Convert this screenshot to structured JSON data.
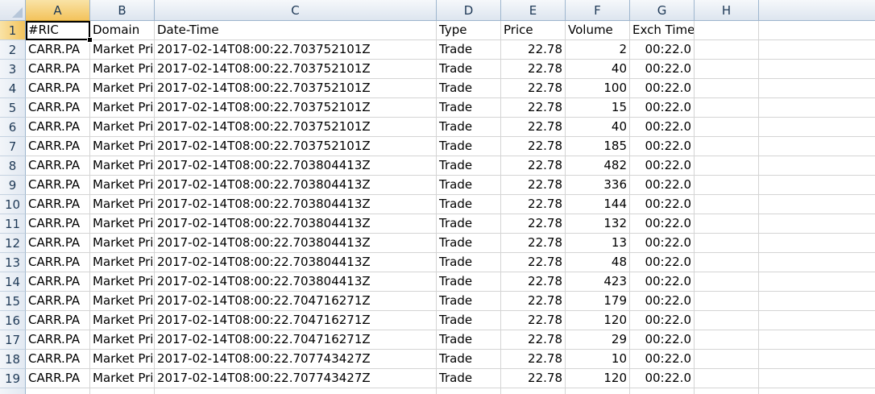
{
  "columns": [
    "A",
    "B",
    "C",
    "D",
    "E",
    "F",
    "G",
    "H"
  ],
  "active_column": "A",
  "active_row": "1",
  "header_row": [
    "#RIC",
    "Domain",
    "Date-Time",
    "Type",
    "Price",
    "Volume",
    "Exch Time"
  ],
  "rows": [
    {
      "n": "1"
    },
    {
      "n": "2",
      "ric": "CARR.PA",
      "domain": "Market Pri",
      "dt": "2017-02-14T08:00:22.703752101Z",
      "type": "Trade",
      "price": "22.78",
      "volume": "2",
      "exch": "00:22.0"
    },
    {
      "n": "3",
      "ric": "CARR.PA",
      "domain": "Market Pri",
      "dt": "2017-02-14T08:00:22.703752101Z",
      "type": "Trade",
      "price": "22.78",
      "volume": "40",
      "exch": "00:22.0"
    },
    {
      "n": "4",
      "ric": "CARR.PA",
      "domain": "Market Pri",
      "dt": "2017-02-14T08:00:22.703752101Z",
      "type": "Trade",
      "price": "22.78",
      "volume": "100",
      "exch": "00:22.0"
    },
    {
      "n": "5",
      "ric": "CARR.PA",
      "domain": "Market Pri",
      "dt": "2017-02-14T08:00:22.703752101Z",
      "type": "Trade",
      "price": "22.78",
      "volume": "15",
      "exch": "00:22.0"
    },
    {
      "n": "6",
      "ric": "CARR.PA",
      "domain": "Market Pri",
      "dt": "2017-02-14T08:00:22.703752101Z",
      "type": "Trade",
      "price": "22.78",
      "volume": "40",
      "exch": "00:22.0"
    },
    {
      "n": "7",
      "ric": "CARR.PA",
      "domain": "Market Pri",
      "dt": "2017-02-14T08:00:22.703752101Z",
      "type": "Trade",
      "price": "22.78",
      "volume": "185",
      "exch": "00:22.0"
    },
    {
      "n": "8",
      "ric": "CARR.PA",
      "domain": "Market Pri",
      "dt": "2017-02-14T08:00:22.703804413Z",
      "type": "Trade",
      "price": "22.78",
      "volume": "482",
      "exch": "00:22.0"
    },
    {
      "n": "9",
      "ric": "CARR.PA",
      "domain": "Market Pri",
      "dt": "2017-02-14T08:00:22.703804413Z",
      "type": "Trade",
      "price": "22.78",
      "volume": "336",
      "exch": "00:22.0"
    },
    {
      "n": "10",
      "ric": "CARR.PA",
      "domain": "Market Pri",
      "dt": "2017-02-14T08:00:22.703804413Z",
      "type": "Trade",
      "price": "22.78",
      "volume": "144",
      "exch": "00:22.0"
    },
    {
      "n": "11",
      "ric": "CARR.PA",
      "domain": "Market Pri",
      "dt": "2017-02-14T08:00:22.703804413Z",
      "type": "Trade",
      "price": "22.78",
      "volume": "132",
      "exch": "00:22.0"
    },
    {
      "n": "12",
      "ric": "CARR.PA",
      "domain": "Market Pri",
      "dt": "2017-02-14T08:00:22.703804413Z",
      "type": "Trade",
      "price": "22.78",
      "volume": "13",
      "exch": "00:22.0"
    },
    {
      "n": "13",
      "ric": "CARR.PA",
      "domain": "Market Pri",
      "dt": "2017-02-14T08:00:22.703804413Z",
      "type": "Trade",
      "price": "22.78",
      "volume": "48",
      "exch": "00:22.0"
    },
    {
      "n": "14",
      "ric": "CARR.PA",
      "domain": "Market Pri",
      "dt": "2017-02-14T08:00:22.703804413Z",
      "type": "Trade",
      "price": "22.78",
      "volume": "423",
      "exch": "00:22.0"
    },
    {
      "n": "15",
      "ric": "CARR.PA",
      "domain": "Market Pri",
      "dt": "2017-02-14T08:00:22.704716271Z",
      "type": "Trade",
      "price": "22.78",
      "volume": "179",
      "exch": "00:22.0"
    },
    {
      "n": "16",
      "ric": "CARR.PA",
      "domain": "Market Pri",
      "dt": "2017-02-14T08:00:22.704716271Z",
      "type": "Trade",
      "price": "22.78",
      "volume": "120",
      "exch": "00:22.0"
    },
    {
      "n": "17",
      "ric": "CARR.PA",
      "domain": "Market Pri",
      "dt": "2017-02-14T08:00:22.704716271Z",
      "type": "Trade",
      "price": "22.78",
      "volume": "29",
      "exch": "00:22.0"
    },
    {
      "n": "18",
      "ric": "CARR.PA",
      "domain": "Market Pri",
      "dt": "2017-02-14T08:00:22.707743427Z",
      "type": "Trade",
      "price": "22.78",
      "volume": "10",
      "exch": "00:22.0"
    },
    {
      "n": "19",
      "ric": "CARR.PA",
      "domain": "Market Pri",
      "dt": "2017-02-14T08:00:22.707743427Z",
      "type": "Trade",
      "price": "22.78",
      "volume": "120",
      "exch": "00:22.0"
    }
  ]
}
